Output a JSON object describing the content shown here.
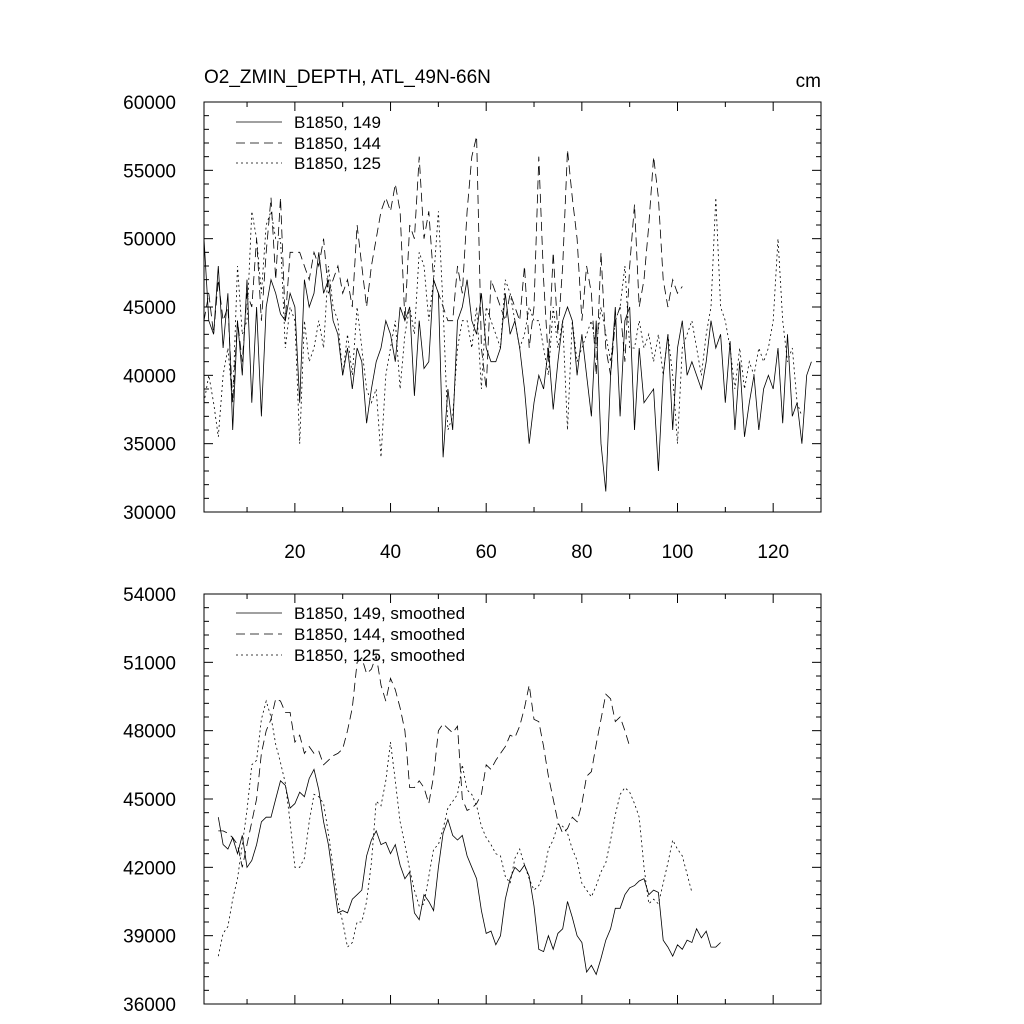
{
  "chart_data": [
    {
      "type": "line",
      "title": "O2_ZMIN_DEPTH, ATL_49N-66N",
      "units": "cm",
      "xlim": [
        1,
        130
      ],
      "ylim": [
        30000,
        60000
      ],
      "x_ticks": [
        20,
        40,
        60,
        80,
        100,
        120
      ],
      "y_ticks": [
        30000,
        35000,
        40000,
        45000,
        50000,
        55000,
        60000
      ],
      "series": [
        {
          "name": "B1850, 149",
          "style": "solid",
          "x_start": 1,
          "values": [
            50000,
            44000,
            43000,
            48000,
            42000,
            46000,
            36000,
            44000,
            40000,
            47000,
            38000,
            45000,
            37000,
            45000,
            47000,
            46000,
            44500,
            44000,
            46000,
            45000,
            38000,
            47000,
            45000,
            46000,
            49000,
            46000,
            47000,
            44000,
            43000,
            40000,
            42000,
            39000,
            42000,
            41000,
            36500,
            39000,
            41000,
            42000,
            44000,
            43000,
            41000,
            45000,
            44000,
            45000,
            38500,
            44000,
            40500,
            41000,
            47000,
            46000,
            34000,
            39000,
            36000,
            44000,
            45000,
            47000,
            44000,
            43000,
            46000,
            42000,
            41000,
            41000,
            42000,
            46000,
            43000,
            44000,
            42000,
            39000,
            35000,
            38000,
            40000,
            39000,
            42000,
            37500,
            41000,
            44000,
            45000,
            44000,
            40000,
            43000,
            40000,
            37000,
            44000,
            35000,
            31500,
            40000,
            45000,
            37000,
            44000,
            45000,
            36000,
            42000,
            38000,
            38500,
            39000,
            33000,
            40000,
            43000,
            36000,
            42000,
            44000,
            40000,
            41000,
            40000,
            39000,
            41000,
            44000,
            42000,
            43000,
            38000,
            42500,
            36000,
            41000,
            35500,
            38000,
            40000,
            36000,
            39000,
            40000,
            39000,
            42000,
            36500,
            43000,
            37000,
            38000,
            35000,
            40000,
            41000
          ]
        },
        {
          "name": "B1850, 144",
          "style": "dashed",
          "x_start": 1,
          "values": [
            44000,
            46000,
            43000,
            47000,
            44000,
            45000,
            38000,
            44000,
            41000,
            46000,
            45000,
            50000,
            44000,
            49000,
            53000,
            47000,
            53000,
            44000,
            49000,
            49000,
            49000,
            48000,
            47000,
            49000,
            48000,
            50000,
            46000,
            47000,
            48000,
            46000,
            47000,
            45000,
            51000,
            48000,
            45000,
            48000,
            50000,
            52000,
            53000,
            52000,
            54000,
            52000,
            44000,
            51000,
            50000,
            56000,
            50000,
            52000,
            47000,
            46000,
            45000,
            44000,
            44000,
            48000,
            46000,
            52000,
            56000,
            57500,
            42000,
            39000,
            47000,
            46000,
            45000,
            44000,
            46000,
            45000,
            44000,
            48000,
            42000,
            45000,
            56000,
            47000,
            41000,
            49000,
            43000,
            48000,
            56500,
            53000,
            50000,
            44000,
            48000,
            46000,
            40000,
            49000,
            42000,
            40000,
            44000,
            45000,
            41000,
            48000,
            52500,
            45000,
            47000,
            51000,
            56000,
            53000,
            47000,
            45000,
            47000,
            46000,
            46500
          ]
        },
        {
          "name": "B1850, 125",
          "style": "dotted",
          "x_start": 1,
          "values": [
            38000,
            40000,
            38000,
            35500,
            40000,
            42000,
            38000,
            48000,
            43000,
            44000,
            52000,
            50000,
            46000,
            51000,
            52000,
            50000,
            50000,
            42000,
            45000,
            44000,
            35000,
            44000,
            41000,
            42000,
            44000,
            42000,
            48000,
            45000,
            44000,
            40000,
            43000,
            40000,
            45000,
            42000,
            39000,
            38000,
            39000,
            34000,
            40000,
            42000,
            44000,
            39000,
            43000,
            45000,
            43000,
            49000,
            48000,
            44000,
            47000,
            52000,
            45000,
            36000,
            37000,
            42000,
            44000,
            44000,
            42000,
            45000,
            39000,
            45000,
            44000,
            43000,
            42000,
            47000,
            46000,
            44000,
            42000,
            43000,
            45000,
            44000,
            44000,
            42000,
            40000,
            45000,
            42000,
            44000,
            36000,
            44000,
            41000,
            42000,
            43000,
            44000,
            42000,
            45000,
            43000,
            41000,
            44000,
            45000,
            48000,
            42000,
            42000,
            44000,
            42000,
            43000,
            41000,
            43000,
            40000,
            43000,
            40000,
            35000,
            42000,
            43000,
            44000,
            42000,
            40000,
            43000,
            45000,
            53000,
            45000,
            44000,
            42000,
            39000,
            42000,
            39000,
            41000,
            40000,
            42000,
            41000,
            42000,
            44000,
            50000,
            44000,
            41000,
            42000,
            38000,
            37000
          ]
        }
      ]
    },
    {
      "type": "line",
      "title": "",
      "xlim": [
        1,
        130
      ],
      "ylim": [
        36000,
        54000
      ],
      "x_ticks": [
        20,
        40,
        60,
        80,
        100,
        120
      ],
      "y_ticks": [
        36000,
        39000,
        42000,
        45000,
        48000,
        51000,
        54000
      ],
      "series": [
        {
          "name": "B1850, 149, smoothed",
          "style": "solid",
          "x_start": 4,
          "values": [
            44200,
            43000,
            42800,
            43300,
            42600,
            43400,
            42000,
            42300,
            43000,
            44000,
            44200,
            44200,
            45000,
            45800,
            45600,
            44600,
            44800,
            45300,
            45100,
            45900,
            46300,
            45400,
            44000,
            43000,
            41500,
            40000,
            40100,
            40000,
            40600,
            40800,
            41000,
            42500,
            43200,
            43600,
            43000,
            43100,
            42600,
            43000,
            42100,
            41500,
            41800,
            40000,
            39700,
            40800,
            40500,
            40100,
            42000,
            43500,
            44100,
            43400,
            43200,
            43400,
            42500,
            42000,
            41500,
            40100,
            39100,
            39200,
            38600,
            39000,
            40600,
            41500,
            42000,
            41800,
            42100,
            41600,
            40300,
            38400,
            38300,
            39000,
            38400,
            39100,
            39300,
            40500,
            39800,
            39000,
            38700,
            37400,
            37700,
            37300,
            38000,
            38800,
            39300,
            40200,
            40200,
            40800,
            41100,
            41200,
            41400,
            41500,
            40800,
            41000,
            40900,
            38800,
            38500,
            38100,
            38600,
            38400,
            38800,
            38700,
            39300,
            38900,
            39200,
            38500,
            38500,
            38700
          ]
        },
        {
          "name": "B1850, 144, smoothed",
          "style": "dashed",
          "x_start": 4,
          "values": [
            43600,
            43600,
            43500,
            43300,
            43000,
            42000,
            43000,
            44000,
            45000,
            47000,
            48000,
            48500,
            49400,
            49300,
            48800,
            48800,
            47500,
            47800,
            47000,
            47300,
            47000,
            47100,
            46500,
            46700,
            46900,
            47000,
            47200,
            48000,
            49000,
            51000,
            51200,
            50500,
            50700,
            51300,
            50000,
            49300,
            50300,
            49800,
            49000,
            48000,
            45500,
            45500,
            45800,
            45500,
            44800,
            46000,
            48000,
            48300,
            48100,
            47900,
            48200,
            45000,
            44500,
            44600,
            44800,
            45200,
            46500,
            46300,
            46700,
            47000,
            47300,
            47800,
            47700,
            48200,
            49000,
            50000,
            48500,
            48400,
            47300,
            46000,
            45000,
            44000,
            43500,
            43700,
            44200,
            44000,
            44800,
            46000,
            46200,
            47400,
            48500,
            49600,
            49400,
            48400,
            48600,
            48000,
            47300
          ]
        },
        {
          "name": "B1850, 125, smoothed",
          "style": "dotted",
          "x_start": 4,
          "values": [
            38100,
            39100,
            39400,
            40600,
            41500,
            43000,
            44500,
            46500,
            46700,
            48500,
            49300,
            48600,
            47400,
            46600,
            45700,
            44000,
            42000,
            42000,
            42400,
            44000,
            45200,
            45100,
            44800,
            43500,
            42000,
            40500,
            39600,
            38500,
            38700,
            39600,
            39600,
            40500,
            42200,
            44900,
            44700,
            45800,
            47500,
            45800,
            44000,
            43000,
            41900,
            41000,
            40300,
            40400,
            41600,
            42800,
            43000,
            43700,
            44600,
            44900,
            45200,
            46500,
            45400,
            45200,
            44700,
            43800,
            43300,
            43000,
            42600,
            42500,
            41600,
            41300,
            42400,
            42800,
            42100,
            41500,
            41000,
            41200,
            41700,
            42800,
            43200,
            43900,
            43800,
            43500,
            42800,
            42300,
            41300,
            41000,
            40700,
            41200,
            41800,
            42200,
            43200,
            44300,
            45200,
            45500,
            45300,
            44800,
            44200,
            42000,
            40400,
            40600,
            40400,
            41300,
            42200,
            43200,
            42800,
            42500,
            41700,
            40900
          ]
        }
      ]
    }
  ]
}
